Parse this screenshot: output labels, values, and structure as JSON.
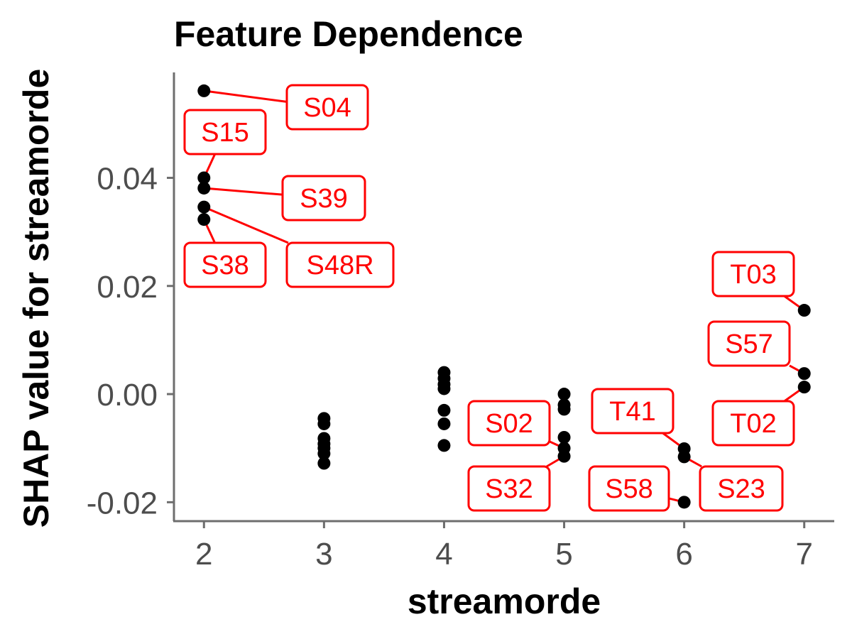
{
  "chart_data": {
    "type": "scatter",
    "title": "Feature Dependence",
    "xlabel": "streamorde",
    "ylabel": "SHAP value for streamorde",
    "xlim": [
      1.75,
      7.25
    ],
    "ylim": [
      -0.0235,
      0.0595
    ],
    "x_ticks": [
      2,
      3,
      4,
      5,
      6,
      7
    ],
    "x_tick_labels": [
      "2",
      "3",
      "4",
      "5",
      "6",
      "7"
    ],
    "y_ticks": [
      -0.02,
      0.0,
      0.02,
      0.04
    ],
    "y_tick_labels": [
      "-0.02",
      "0.00",
      "0.02",
      "0.04"
    ],
    "grid": false,
    "point_color": "#000000",
    "label_color": "#ff0000",
    "points": [
      {
        "x": 2,
        "y": 0.0561,
        "label": "S04"
      },
      {
        "x": 2,
        "y": 0.04,
        "label": "S15"
      },
      {
        "x": 2,
        "y": 0.0381,
        "label": "S39"
      },
      {
        "x": 2,
        "y": 0.0346,
        "label": "S48R"
      },
      {
        "x": 2,
        "y": 0.0323,
        "label": "S38"
      },
      {
        "x": 3,
        "y": -0.0045
      },
      {
        "x": 3,
        "y": -0.0055
      },
      {
        "x": 3,
        "y": -0.0082
      },
      {
        "x": 3,
        "y": -0.0092
      },
      {
        "x": 3,
        "y": -0.01
      },
      {
        "x": 3,
        "y": -0.011
      },
      {
        "x": 3,
        "y": -0.0128
      },
      {
        "x": 4,
        "y": 0.004
      },
      {
        "x": 4,
        "y": 0.0029
      },
      {
        "x": 4,
        "y": 0.0018
      },
      {
        "x": 4,
        "y": 0.001
      },
      {
        "x": 4,
        "y": -0.003
      },
      {
        "x": 4,
        "y": -0.0055
      },
      {
        "x": 4,
        "y": -0.0095
      },
      {
        "x": 5,
        "y": 0.0
      },
      {
        "x": 5,
        "y": -0.002
      },
      {
        "x": 5,
        "y": -0.0028
      },
      {
        "x": 5,
        "y": -0.008
      },
      {
        "x": 5,
        "y": -0.01,
        "label": "S02"
      },
      {
        "x": 5,
        "y": -0.0115,
        "label": "S32"
      },
      {
        "x": 6,
        "y": -0.0101,
        "label": "T41"
      },
      {
        "x": 6,
        "y": -0.0116,
        "label": "S23"
      },
      {
        "x": 6,
        "y": -0.02,
        "label": "S58"
      },
      {
        "x": 7,
        "y": 0.0155,
        "label": "T03"
      },
      {
        "x": 7,
        "y": 0.0038,
        "label": "S57"
      },
      {
        "x": 7,
        "y": 0.0013,
        "label": "T02"
      }
    ]
  }
}
